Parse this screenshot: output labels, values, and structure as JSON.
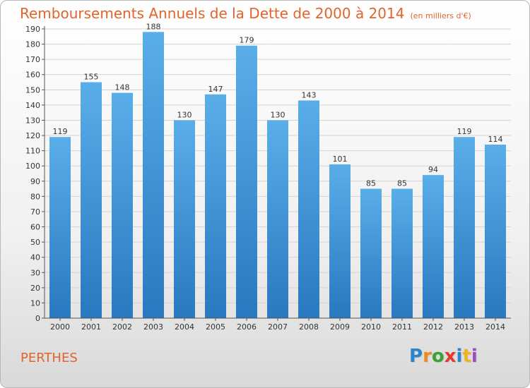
{
  "chart_data": {
    "type": "bar",
    "title": "Remboursements Annuels de la Dette de 2000 à 2014",
    "subtitle": "(en milliers d'€)",
    "categories": [
      "2000",
      "2001",
      "2002",
      "2003",
      "2004",
      "2005",
      "2006",
      "2007",
      "2008",
      "2009",
      "2010",
      "2011",
      "2012",
      "2013",
      "2014"
    ],
    "values": [
      119,
      155,
      148,
      188,
      130,
      147,
      179,
      130,
      143,
      101,
      85,
      85,
      94,
      119,
      114
    ],
    "xlabel": "",
    "ylabel": "",
    "ylim": [
      0,
      190
    ],
    "yticks": [
      0,
      10,
      20,
      30,
      40,
      50,
      60,
      70,
      80,
      90,
      100,
      110,
      120,
      130,
      140,
      150,
      160,
      170,
      180,
      190
    ],
    "grid": true,
    "bar_color": "#3d8fd6",
    "title_color": "#e0642c"
  },
  "commune": "PERTHES",
  "logo": {
    "letters": [
      "P",
      "r",
      "o",
      "x",
      "i",
      "t",
      "i"
    ]
  }
}
